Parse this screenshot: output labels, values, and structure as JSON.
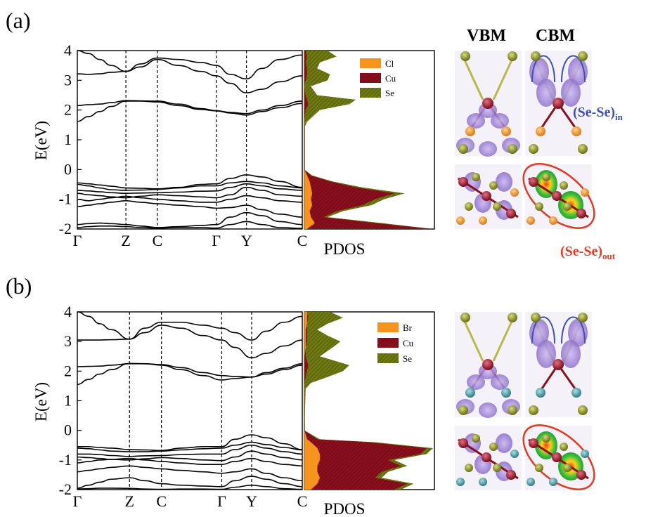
{
  "figure": {
    "panels": [
      {
        "label": "(a)",
        "ylabel": "E(eV)",
        "yticks": [
          "-2",
          "-1",
          "0",
          "1",
          "2",
          "3",
          "4"
        ],
        "kpoints": [
          "Γ",
          "Z",
          "C",
          "Γ",
          "Y",
          "C"
        ],
        "pdos_label": "PDOS",
        "legend": [
          "Cl",
          "Cu",
          "Se"
        ],
        "iso_headers": [
          "VBM",
          "CBM"
        ],
        "annotation_in": "(Se-Se)in",
        "annotation_in_main": "(Se-Se)",
        "annotation_in_sub": "in",
        "annotation_out": "(Se-Se)out",
        "annotation_out_main": "(Se-Se)",
        "annotation_out_sub": "out",
        "halide_color": "#E08A2A"
      },
      {
        "label": "(b)",
        "ylabel": "E(eV)",
        "yticks": [
          "-2",
          "-1",
          "0",
          "1",
          "2",
          "3",
          "4"
        ],
        "kpoints": [
          "Γ",
          "Z",
          "C",
          "Γ",
          "Y",
          "C"
        ],
        "pdos_label": "PDOS",
        "legend": [
          "Br",
          "Cu",
          "Se"
        ],
        "halide_color": "#3F8A93"
      }
    ],
    "colors": {
      "halide": "#F7941D",
      "cu": "#8B0F1C",
      "se": "#6F7A12",
      "annotation_in": "#3D4FB5",
      "annotation_out": "#E23A24",
      "isosurface": "#9B7FD0"
    }
  },
  "chart_data": [
    {
      "type": "line",
      "title": "(a)",
      "ylabel": "E(eV)",
      "ylim": [
        -2,
        4
      ],
      "x_ticks": [
        "Γ",
        "Z",
        "C",
        "Γ",
        "Y",
        "C"
      ],
      "kpath_positions": [
        0,
        0.216,
        0.356,
        0.618,
        0.752,
        1.0
      ],
      "x": [
        0,
        0.05,
        0.1,
        0.15,
        0.216,
        0.28,
        0.356,
        0.45,
        0.55,
        0.618,
        0.68,
        0.752,
        0.82,
        0.9,
        1.0
      ],
      "series": [
        {
          "values": [
            1.62,
            1.78,
            1.95,
            2.12,
            2.3,
            2.3,
            2.27,
            2.15,
            2.02,
            1.97,
            1.9,
            1.83,
            1.95,
            2.08,
            2.22
          ]
        },
        {
          "values": [
            2.15,
            2.18,
            2.2,
            2.25,
            2.32,
            2.31,
            2.3,
            2.2,
            2.05,
            1.98,
            1.92,
            1.88,
            2.0,
            2.15,
            2.3
          ]
        },
        {
          "values": [
            3.22,
            3.2,
            3.22,
            3.27,
            3.3,
            3.45,
            3.7,
            3.5,
            3.3,
            3.15,
            2.9,
            2.58,
            2.7,
            2.95,
            3.15
          ]
        },
        {
          "values": [
            4.0,
            3.9,
            3.7,
            3.5,
            3.3,
            3.55,
            3.75,
            3.7,
            3.6,
            3.5,
            3.2,
            3.05,
            3.4,
            3.7,
            3.85
          ]
        },
        {
          "values": [
            -0.45,
            -0.48,
            -0.52,
            -0.56,
            -0.62,
            -0.63,
            -0.65,
            -0.6,
            -0.5,
            -0.48,
            -0.3,
            -0.18,
            -0.25,
            -0.4,
            -0.6
          ]
        },
        {
          "values": [
            -0.5,
            -0.55,
            -0.62,
            -0.68,
            -0.7,
            -0.69,
            -0.67,
            -0.62,
            -0.55,
            -0.55,
            -0.45,
            -0.4,
            -0.45,
            -0.55,
            -0.62
          ]
        },
        {
          "values": [
            -0.7,
            -0.72,
            -0.75,
            -0.78,
            -0.8,
            -0.79,
            -0.78,
            -0.76,
            -0.73,
            -0.72,
            -0.6,
            -0.48,
            -0.55,
            -0.65,
            -0.7
          ]
        },
        {
          "values": [
            -0.8,
            -0.85,
            -0.88,
            -0.92,
            -0.95,
            -0.9,
            -0.85,
            -0.88,
            -0.92,
            -0.95,
            -0.85,
            -0.6,
            -0.7,
            -0.85,
            -0.9
          ]
        },
        {
          "values": [
            -1.0,
            -1.05,
            -1.0,
            -0.95,
            -0.9,
            -0.95,
            -1.0,
            -1.05,
            -1.1,
            -1.1,
            -1.0,
            -0.88,
            -0.95,
            -1.05,
            -1.1
          ]
        },
        {
          "values": [
            -1.25,
            -1.2,
            -1.15,
            -1.1,
            -1.05,
            -1.1,
            -1.15,
            -1.2,
            -1.25,
            -1.3,
            -1.28,
            -1.2,
            -1.35,
            -1.5,
            -1.6
          ]
        },
        {
          "values": [
            -1.85,
            -1.82,
            -1.8,
            -1.82,
            -1.85,
            -1.9,
            -1.95,
            -1.92,
            -1.88,
            -1.85,
            -1.6,
            -1.45,
            -1.55,
            -1.75,
            -1.85
          ]
        },
        {
          "values": [
            -1.95,
            -1.92,
            -1.9,
            -1.9,
            -1.92,
            -1.95,
            -1.97,
            -1.95,
            -1.95,
            -1.97,
            -1.85,
            -1.75,
            -1.85,
            -1.95,
            -1.98
          ]
        }
      ],
      "pdos": {
        "legend": [
          "Cl",
          "Cu",
          "Se"
        ],
        "energies": [
          -2.0,
          -1.8,
          -1.6,
          -1.4,
          -1.2,
          -1.0,
          -0.8,
          -0.6,
          -0.4,
          -0.2,
          0.0,
          1.4,
          1.6,
          2.0,
          2.2,
          2.35,
          2.5,
          2.8,
          3.0,
          3.2,
          3.4,
          3.6,
          3.8,
          4.0
        ],
        "Cl": [
          0.02,
          0.08,
          0.05,
          0.04,
          0.06,
          0.05,
          0.06,
          0.05,
          0.04,
          0.02,
          0,
          0,
          0,
          0,
          0,
          0,
          0,
          0,
          0,
          0,
          0,
          0,
          0,
          0
        ],
        "Cu": [
          1.0,
          0.55,
          0.15,
          0.25,
          0.45,
          0.55,
          0.7,
          0.4,
          0.2,
          0.05,
          0,
          0,
          0,
          0.01,
          0.03,
          0.02,
          0.01,
          0,
          0.01,
          0.02,
          0.02,
          0.01,
          0.02,
          0.01
        ],
        "Se": [
          1.0,
          0.6,
          0.18,
          0.3,
          0.52,
          0.62,
          0.78,
          0.45,
          0.22,
          0.06,
          0,
          0,
          0.02,
          0.12,
          0.35,
          0.4,
          0.1,
          0.05,
          0.18,
          0.2,
          0.1,
          0.12,
          0.25,
          0.18
        ]
      }
    },
    {
      "type": "line",
      "title": "(b)",
      "ylabel": "E(eV)",
      "ylim": [
        -2,
        4
      ],
      "x_ticks": [
        "Γ",
        "Z",
        "C",
        "Γ",
        "Y",
        "C"
      ],
      "kpath_positions": [
        0,
        0.232,
        0.374,
        0.642,
        0.775,
        1.0
      ],
      "x": [
        0,
        0.05,
        0.1,
        0.15,
        0.232,
        0.3,
        0.374,
        0.46,
        0.56,
        0.642,
        0.7,
        0.775,
        0.84,
        0.92,
        1.0
      ],
      "series": [
        {
          "values": [
            1.55,
            1.72,
            1.9,
            2.05,
            2.26,
            2.25,
            2.2,
            2.05,
            1.85,
            1.7,
            1.75,
            1.8,
            1.95,
            2.1,
            2.25
          ]
        },
        {
          "values": [
            2.15,
            2.16,
            2.17,
            2.2,
            2.25,
            2.25,
            2.22,
            2.12,
            1.95,
            1.85,
            1.82,
            1.8,
            1.9,
            2.05,
            2.2
          ]
        },
        {
          "values": [
            3.05,
            3.05,
            3.05,
            3.06,
            3.08,
            3.3,
            3.55,
            3.45,
            3.2,
            3.05,
            2.8,
            2.45,
            2.6,
            2.85,
            3.05
          ]
        },
        {
          "values": [
            4.0,
            3.85,
            3.6,
            3.4,
            3.08,
            3.45,
            3.65,
            3.65,
            3.55,
            3.45,
            3.3,
            3.05,
            3.35,
            3.65,
            3.85
          ]
        },
        {
          "values": [
            -0.55,
            -0.55,
            -0.58,
            -0.6,
            -0.65,
            -0.66,
            -0.68,
            -0.6,
            -0.55,
            -0.55,
            -0.3,
            -0.15,
            -0.25,
            -0.45,
            -0.65
          ]
        },
        {
          "values": [
            -0.6,
            -0.62,
            -0.66,
            -0.7,
            -0.72,
            -0.72,
            -0.7,
            -0.66,
            -0.62,
            -0.6,
            -0.5,
            -0.4,
            -0.48,
            -0.58,
            -0.66
          ]
        },
        {
          "values": [
            -0.8,
            -0.8,
            -0.82,
            -0.85,
            -0.88,
            -0.86,
            -0.85,
            -0.82,
            -0.8,
            -0.8,
            -0.65,
            -0.5,
            -0.6,
            -0.72,
            -0.8
          ]
        },
        {
          "values": [
            -0.9,
            -0.92,
            -0.95,
            -0.98,
            -1.0,
            -0.96,
            -0.92,
            -0.95,
            -1.0,
            -1.02,
            -0.9,
            -0.7,
            -0.8,
            -0.92,
            -1.0
          ]
        },
        {
          "values": [
            -1.1,
            -1.05,
            -1.0,
            -0.98,
            -0.95,
            -1.0,
            -1.05,
            -1.1,
            -1.15,
            -1.15,
            -1.05,
            -0.95,
            -1.05,
            -1.15,
            -1.2
          ]
        },
        {
          "values": [
            -1.4,
            -1.35,
            -1.3,
            -1.25,
            -1.2,
            -1.25,
            -1.3,
            -1.35,
            -1.4,
            -1.45,
            -1.4,
            -1.3,
            -1.45,
            -1.6,
            -1.7
          ]
        },
        {
          "values": [
            -1.95,
            -1.85,
            -1.75,
            -1.65,
            -1.6,
            -1.7,
            -1.8,
            -1.85,
            -1.88,
            -1.9,
            -1.7,
            -1.55,
            -1.65,
            -1.8,
            -1.9
          ]
        },
        {
          "values": [
            -1.98,
            -1.97,
            -1.95,
            -1.95,
            -1.96,
            -1.98,
            -1.99,
            -1.98,
            -1.98,
            -1.99,
            -1.92,
            -1.85,
            -1.9,
            -1.97,
            -1.99
          ]
        }
      ],
      "pdos": {
        "legend": [
          "Br",
          "Cu",
          "Se"
        ],
        "energies": [
          -2.0,
          -1.8,
          -1.6,
          -1.4,
          -1.2,
          -1.0,
          -0.8,
          -0.6,
          -0.4,
          -0.3,
          0.0,
          1.4,
          1.6,
          1.8,
          2.0,
          2.2,
          2.5,
          2.8,
          3.0,
          3.2,
          3.4,
          3.6,
          3.8,
          4.0
        ],
        "Br": [
          0.05,
          0.1,
          0.12,
          0.1,
          0.1,
          0.12,
          0.12,
          0.1,
          0.05,
          0.02,
          0,
          0,
          0,
          0,
          0,
          0,
          0,
          0.01,
          0.01,
          0.01,
          0.01,
          0.02,
          0.02,
          0.02
        ],
        "Cu": [
          0.7,
          0.8,
          0.55,
          0.6,
          0.75,
          0.65,
          0.9,
          0.95,
          0.5,
          0.1,
          0,
          0,
          0,
          0.01,
          0.02,
          0.03,
          0.01,
          0.01,
          0.02,
          0.02,
          0.02,
          0.02,
          0.03,
          0.02
        ],
        "Se": [
          0.75,
          0.85,
          0.6,
          0.65,
          0.8,
          0.7,
          0.95,
          1.0,
          0.55,
          0.12,
          0,
          0.01,
          0.05,
          0.18,
          0.3,
          0.35,
          0.12,
          0.22,
          0.28,
          0.18,
          0.1,
          0.18,
          0.3,
          0.2
        ]
      }
    }
  ]
}
